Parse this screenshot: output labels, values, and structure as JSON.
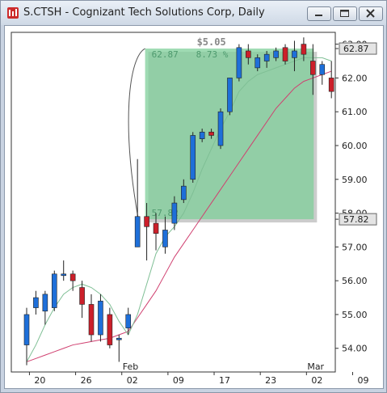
{
  "window": {
    "title": "S.CTSH - Cognizant Tech Solutions Corp, Daily",
    "icon": "chart-app-icon",
    "buttons": [
      "minimize-icon",
      "maximize-icon",
      "close-icon"
    ]
  },
  "chart_data": {
    "type": "candlestick",
    "title": "S.CTSH - Cognizant Tech Solutions Corp, Daily",
    "ylim": [
      53.3,
      63.35
    ],
    "y_ticks": [
      "54.00",
      "55.00",
      "56.00",
      "57.00",
      "58.00",
      "59.00",
      "60.00",
      "61.00",
      "62.00",
      "63.00"
    ],
    "x_ticks": [
      "20",
      "26",
      "02",
      "09",
      "17",
      "23",
      "02",
      "09"
    ],
    "x_month_labels": [
      "Feb",
      "Mar"
    ],
    "price_labels": [
      "62.87",
      "57.82"
    ],
    "colors": {
      "up": "#1e6fd9",
      "down": "#cc1f2a",
      "sma_fast": "#7fbf95",
      "sma_slow": "#d04070",
      "box": "#7fcf9a"
    },
    "candles": [
      {
        "open": 54.1,
        "high": 55.2,
        "low": 53.5,
        "close": 55.0
      },
      {
        "open": 55.2,
        "high": 55.7,
        "low": 55.0,
        "close": 55.5
      },
      {
        "open": 55.1,
        "high": 55.7,
        "low": 54.7,
        "close": 55.6
      },
      {
        "open": 55.2,
        "high": 56.3,
        "low": 55.1,
        "close": 56.2
      },
      {
        "open": 56.2,
        "high": 56.6,
        "low": 56.0,
        "close": 56.2
      },
      {
        "open": 56.2,
        "high": 56.3,
        "low": 55.7,
        "close": 56.0
      },
      {
        "open": 55.8,
        "high": 56.0,
        "low": 54.9,
        "close": 55.3
      },
      {
        "open": 55.3,
        "high": 55.6,
        "low": 54.2,
        "close": 54.4
      },
      {
        "open": 54.4,
        "high": 55.6,
        "low": 54.2,
        "close": 55.4
      },
      {
        "open": 55.0,
        "high": 55.2,
        "low": 54.0,
        "close": 54.1
      },
      {
        "open": 54.3,
        "high": 54.4,
        "low": 53.6,
        "close": 54.3
      },
      {
        "open": 54.6,
        "high": 55.2,
        "low": 54.4,
        "close": 55.0
      },
      {
        "open": 57.0,
        "high": 59.6,
        "low": 57.0,
        "close": 57.9
      },
      {
        "open": 57.9,
        "high": 58.3,
        "low": 56.6,
        "close": 57.6
      },
      {
        "open": 57.7,
        "high": 58.0,
        "low": 56.9,
        "close": 57.4
      },
      {
        "open": 57.0,
        "high": 57.9,
        "low": 56.8,
        "close": 57.5
      },
      {
        "open": 57.7,
        "high": 58.5,
        "low": 57.5,
        "close": 58.3
      },
      {
        "open": 58.4,
        "high": 59.0,
        "low": 58.3,
        "close": 58.8
      },
      {
        "open": 59.0,
        "high": 60.4,
        "low": 58.9,
        "close": 60.3
      },
      {
        "open": 60.2,
        "high": 60.5,
        "low": 60.1,
        "close": 60.4
      },
      {
        "open": 60.4,
        "high": 60.5,
        "low": 60.2,
        "close": 60.3
      },
      {
        "open": 60.0,
        "high": 61.1,
        "low": 59.9,
        "close": 61.0
      },
      {
        "open": 61.0,
        "high": 62.0,
        "low": 60.9,
        "close": 62.0
      },
      {
        "open": 62.0,
        "high": 63.0,
        "low": 61.9,
        "close": 62.9
      },
      {
        "open": 62.8,
        "high": 63.0,
        "low": 62.4,
        "close": 62.6
      },
      {
        "open": 62.3,
        "high": 62.7,
        "low": 62.2,
        "close": 62.6
      },
      {
        "open": 62.5,
        "high": 62.8,
        "low": 62.3,
        "close": 62.7
      },
      {
        "open": 62.6,
        "high": 62.9,
        "low": 62.5,
        "close": 62.8
      },
      {
        "open": 62.9,
        "high": 63.0,
        "low": 62.4,
        "close": 62.5
      },
      {
        "open": 62.6,
        "high": 63.1,
        "low": 62.2,
        "close": 62.8
      },
      {
        "open": 63.0,
        "high": 63.2,
        "low": 62.5,
        "close": 62.7
      },
      {
        "open": 62.5,
        "high": 63.0,
        "low": 61.5,
        "close": 62.1
      },
      {
        "open": 62.1,
        "high": 62.5,
        "low": 61.8,
        "close": 62.4
      },
      {
        "open": 62.0,
        "high": 62.5,
        "low": 61.4,
        "close": 61.6
      }
    ],
    "sma_fast": [
      53.6,
      54.1,
      54.7,
      55.2,
      55.6,
      55.8,
      55.9,
      55.8,
      55.6,
      55.3,
      54.8,
      54.4,
      55.0,
      55.9,
      56.8,
      57.3,
      57.6,
      58.0,
      58.6,
      59.3,
      59.9,
      60.5,
      61.0,
      61.6,
      61.9,
      62.1,
      62.2,
      62.3,
      62.4,
      62.5,
      62.6,
      62.6,
      62.6,
      62.5
    ],
    "sma_slow": [
      53.6,
      53.7,
      53.8,
      53.9,
      54.0,
      54.1,
      54.15,
      54.2,
      54.25,
      54.3,
      54.4,
      54.5,
      54.9,
      55.3,
      55.7,
      56.2,
      56.7,
      57.1,
      57.5,
      57.9,
      58.3,
      58.7,
      59.1,
      59.5,
      59.9,
      60.3,
      60.7,
      61.1,
      61.4,
      61.7,
      61.9,
      62.0,
      62.1,
      62.2
    ],
    "annotation": {
      "change": "$5.05",
      "high_label": "62.87",
      "pct_label": "8.73 %",
      "low_label": "57.82",
      "start_index": 13,
      "end_index": 31,
      "low": 57.82,
      "high": 62.87
    }
  }
}
